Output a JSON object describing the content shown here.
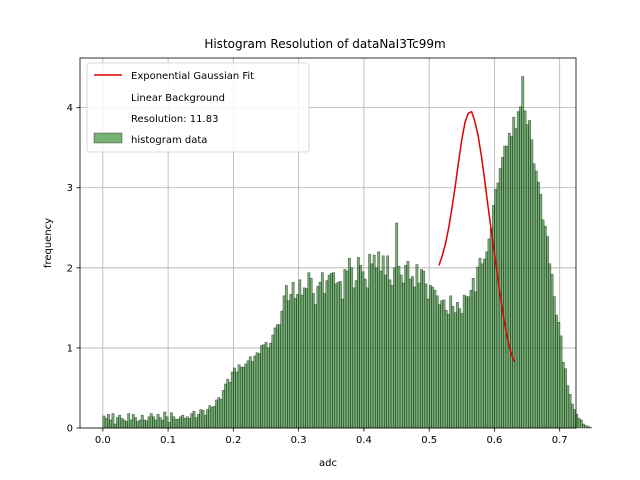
{
  "chart_data": {
    "type": "bar",
    "title": "Histogram Resolution of dataNaI3Tc99m",
    "xlabel": "adc",
    "ylabel": "frequency",
    "xlim": [
      -0.035,
      0.725
    ],
    "ylim": [
      0,
      4.62
    ],
    "xticks": [
      0.0,
      0.1,
      0.2,
      0.3,
      0.4,
      0.5,
      0.6,
      0.7
    ],
    "xtick_labels": [
      "0.0",
      "0.1",
      "0.2",
      "0.3",
      "0.4",
      "0.5",
      "0.6",
      "0.7"
    ],
    "yticks": [
      0,
      1,
      2,
      3,
      4
    ],
    "ytick_labels": [
      "0",
      "1",
      "2",
      "3",
      "4"
    ],
    "grid": true,
    "legend_position": "top-left",
    "legend": [
      {
        "label": "Exponential Gaussian Fit",
        "marker": "line",
        "color": "#e00000"
      },
      {
        "label": "Linear Background",
        "marker": "none"
      },
      {
        "label": "Resolution: 11.83",
        "marker": "none"
      },
      {
        "label": "histogram data",
        "marker": "patch",
        "color": "#2e8b2e"
      }
    ],
    "histogram": {
      "bin_start": 0.0,
      "bin_width": 0.00345,
      "counts": [
        0.15,
        0.12,
        0.17,
        0.1,
        0.18,
        0.05,
        0.13,
        0.16,
        0.12,
        0.1,
        0.08,
        0.18,
        0.1,
        0.17,
        0.13,
        0.08,
        0.1,
        0.16,
        0.1,
        0.09,
        0.14,
        0.18,
        0.14,
        0.1,
        0.17,
        0.13,
        0.1,
        0.2,
        0.14,
        0.07,
        0.19,
        0.14,
        0.11,
        0.11,
        0.14,
        0.16,
        0.12,
        0.14,
        0.12,
        0.18,
        0.21,
        0.13,
        0.17,
        0.23,
        0.22,
        0.16,
        0.23,
        0.28,
        0.26,
        0.27,
        0.35,
        0.38,
        0.36,
        0.47,
        0.55,
        0.61,
        0.57,
        0.7,
        0.75,
        0.7,
        0.79,
        0.76,
        0.76,
        0.8,
        0.84,
        0.89,
        0.83,
        0.9,
        0.94,
        0.93,
        1.03,
        1.04,
        1.07,
        1.0,
        1.06,
        1.16,
        1.25,
        1.29,
        1.29,
        1.46,
        1.65,
        1.78,
        1.59,
        1.67,
        1.82,
        1.62,
        1.67,
        1.85,
        1.66,
        1.75,
        1.74,
        1.94,
        1.87,
        1.68,
        1.54,
        1.77,
        1.82,
        1.94,
        1.68,
        1.84,
        1.91,
        1.93,
        1.94,
        1.8,
        1.82,
        1.83,
        1.61,
        1.98,
        1.96,
        2.12,
        2.0,
        1.75,
        1.84,
        2.13,
        2.03,
        1.95,
        1.86,
        1.75,
        2.17,
        2.05,
        2.16,
        2.0,
        2.2,
        1.96,
        2.15,
        1.91,
        2.15,
        1.85,
        1.78,
        2.0,
        2.56,
        2.02,
        1.91,
        1.81,
        2.03,
        2.08,
        1.86,
        1.89,
        1.76,
        2.04,
        1.81,
        1.98,
        1.96,
        1.8,
        1.61,
        1.78,
        1.76,
        1.72,
        1.65,
        1.54,
        1.59,
        1.6,
        1.47,
        1.42,
        1.65,
        1.52,
        1.44,
        1.57,
        1.49,
        1.43,
        1.66,
        1.64,
        1.64,
        1.72,
        1.87,
        1.7,
        2.01,
        2.12,
        2.05,
        2.11,
        2.2,
        2.36,
        2.49,
        2.78,
        2.98,
        3.06,
        3.24,
        3.38,
        3.52,
        3.52,
        3.68,
        3.64,
        3.88,
        3.74,
        3.95,
        4.01,
        4.39,
        3.96,
        3.79,
        3.84,
        3.6,
        3.3,
        3.21,
        3.07,
        2.92,
        2.6,
        2.52,
        2.39,
        2.05,
        1.92,
        1.64,
        1.41,
        1.32,
        1.15,
        0.82,
        0.74,
        0.53,
        0.42,
        0.3,
        0.23,
        0.17,
        0.12,
        0.1,
        0.05,
        0.03,
        0.02,
        0.01,
        0.0
      ]
    },
    "series": [
      {
        "name": "Exponential Gaussian Fit",
        "x": [
          0.515,
          0.52,
          0.525,
          0.53,
          0.535,
          0.54,
          0.545,
          0.55,
          0.555,
          0.56,
          0.565,
          0.57,
          0.575,
          0.58,
          0.585,
          0.59,
          0.595,
          0.6,
          0.605,
          0.61,
          0.615,
          0.62,
          0.625,
          0.63
        ],
        "y": [
          2.03,
          2.15,
          2.3,
          2.5,
          2.75,
          3.02,
          3.32,
          3.6,
          3.82,
          3.93,
          3.95,
          3.83,
          3.65,
          3.4,
          3.1,
          2.78,
          2.48,
          2.18,
          1.88,
          1.6,
          1.33,
          1.12,
          0.95,
          0.83
        ]
      }
    ]
  }
}
